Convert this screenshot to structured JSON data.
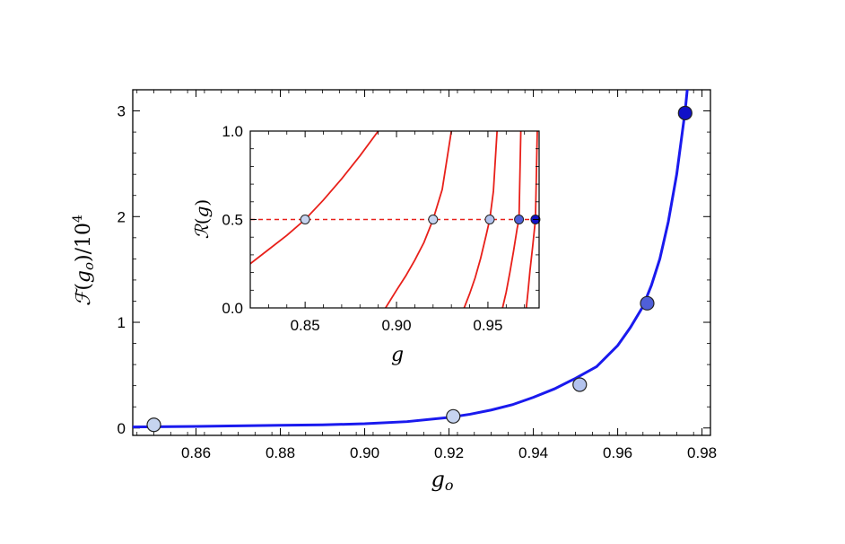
{
  "chart_data": [
    {
      "id": "main",
      "type": "line",
      "xlabel": "g_o",
      "ylabel": "ℱ(g_o)/10^4",
      "xlim": [
        0.845,
        0.982
      ],
      "ylim": [
        -0.07,
        3.2
      ],
      "xticks": [
        "0.86",
        "0.88",
        "0.90",
        "0.92",
        "0.94",
        "0.96",
        "0.98"
      ],
      "yticks": [
        "0",
        "1",
        "2",
        "3"
      ],
      "grid": false,
      "series": [
        {
          "kind": "curve",
          "color": "#1a1aee",
          "x": [
            0.845,
            0.86,
            0.87,
            0.88,
            0.89,
            0.9,
            0.91,
            0.92,
            0.925,
            0.93,
            0.935,
            0.94,
            0.945,
            0.95,
            0.955,
            0.96,
            0.963,
            0.966,
            0.968,
            0.97,
            0.972,
            0.974,
            0.976,
            0.977,
            0.978
          ],
          "y": [
            0.01,
            0.015,
            0.02,
            0.025,
            0.03,
            0.04,
            0.06,
            0.1,
            0.13,
            0.17,
            0.22,
            0.29,
            0.37,
            0.47,
            0.58,
            0.78,
            0.95,
            1.15,
            1.35,
            1.6,
            1.95,
            2.4,
            3.0,
            3.4,
            3.9
          ]
        },
        {
          "kind": "points",
          "x": [
            0.85,
            0.921,
            0.951,
            0.967,
            0.976
          ],
          "y": [
            0.03,
            0.11,
            0.41,
            1.18,
            2.98
          ],
          "colors": [
            "#c6d4f0",
            "#c6d4f0",
            "#b3c3ee",
            "#4f5fd8",
            "#1010c8"
          ]
        }
      ]
    },
    {
      "id": "inset",
      "type": "line",
      "xlabel": "g",
      "ylabel": "ℛ(g)",
      "xlim": [
        0.82,
        0.978
      ],
      "ylim": [
        0.0,
        1.0
      ],
      "xticks": [
        "0.85",
        "0.90",
        "0.95"
      ],
      "yticks": [
        "0.0",
        "0.5",
        "1.0"
      ],
      "grid": false,
      "reference_line": {
        "y": 0.5,
        "style": "dashed",
        "color": "#e8201a"
      },
      "curves": [
        {
          "color": "#e8201a",
          "x": [
            0.82,
            0.83,
            0.84,
            0.85,
            0.86,
            0.87,
            0.88,
            0.89
          ],
          "y": [
            0.25,
            0.33,
            0.41,
            0.5,
            0.61,
            0.73,
            0.86,
            1.0
          ]
        },
        {
          "color": "#e8201a",
          "x": [
            0.894,
            0.9,
            0.905,
            0.91,
            0.915,
            0.92,
            0.925,
            0.93
          ],
          "y": [
            0.0,
            0.1,
            0.18,
            0.27,
            0.37,
            0.5,
            0.67,
            1.0
          ]
        },
        {
          "color": "#e8201a",
          "x": [
            0.937,
            0.94,
            0.943,
            0.946,
            0.949,
            0.951,
            0.953,
            0.955
          ],
          "y": [
            0.0,
            0.08,
            0.17,
            0.28,
            0.41,
            0.5,
            0.66,
            1.0
          ]
        },
        {
          "color": "#e8201a",
          "x": [
            0.958,
            0.96,
            0.962,
            0.964,
            0.966,
            0.967,
            0.968
          ],
          "y": [
            0.0,
            0.09,
            0.2,
            0.32,
            0.45,
            0.5,
            1.0
          ]
        },
        {
          "color": "#e8201a",
          "x": [
            0.971,
            0.972,
            0.973,
            0.9745,
            0.976,
            0.977
          ],
          "y": [
            0.0,
            0.1,
            0.21,
            0.35,
            0.5,
            1.0
          ]
        }
      ],
      "points": {
        "x": [
          0.85,
          0.92,
          0.951,
          0.967,
          0.976
        ],
        "y": [
          0.5,
          0.5,
          0.5,
          0.5,
          0.5
        ],
        "colors": [
          "#c6d4f0",
          "#c6d4f0",
          "#b3c3ee",
          "#4f5fd8",
          "#1010c8"
        ]
      }
    }
  ]
}
